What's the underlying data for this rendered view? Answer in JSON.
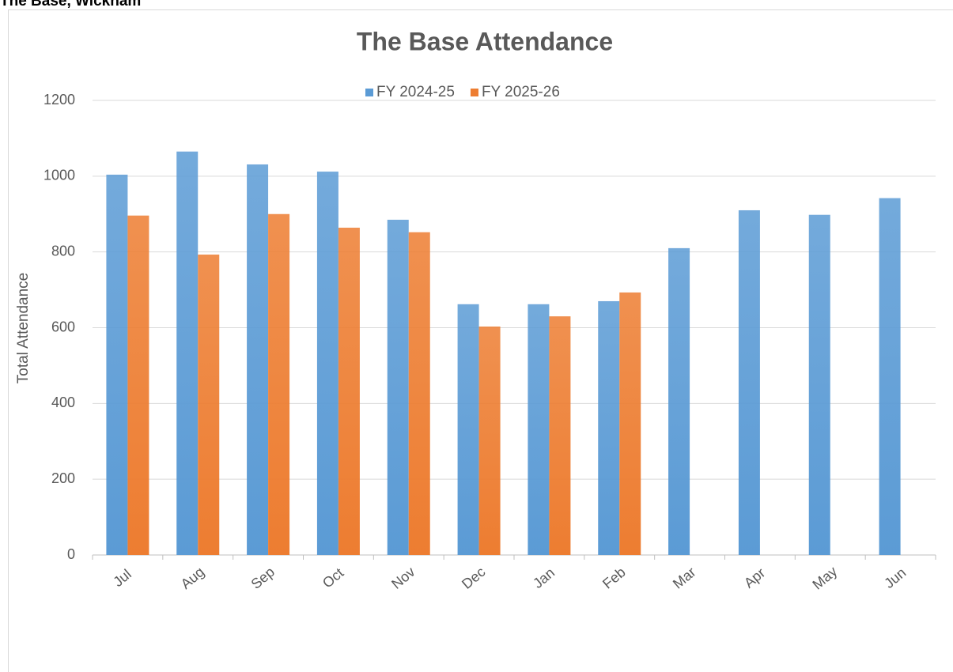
{
  "header": "The Base, Wickham",
  "chart_data": {
    "type": "bar",
    "title": "The Base Attendance",
    "y_label": "Total Attendance",
    "categories": [
      "Jul",
      "Aug",
      "Sep",
      "Oct",
      "Nov",
      "Dec",
      "Jan",
      "Feb",
      "Mar",
      "Apr",
      "May",
      "Jun"
    ],
    "series": [
      {
        "name": "FY 2024-25",
        "color": "#5b9bd5",
        "values": [
          1004,
          1065,
          1031,
          1012,
          885,
          662,
          662,
          670,
          810,
          910,
          898,
          942
        ]
      },
      {
        "name": "FY 2025-26",
        "color": "#ed7d31",
        "values": [
          896,
          793,
          900,
          864,
          852,
          603,
          630,
          693,
          null,
          null,
          null,
          null
        ]
      }
    ],
    "ylim": [
      0,
      1200
    ],
    "yticks": [
      0,
      200,
      400,
      600,
      800,
      1000,
      1200
    ],
    "grid": true,
    "legend": "top"
  }
}
